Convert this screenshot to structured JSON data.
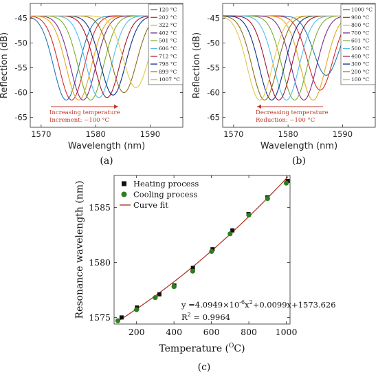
{
  "chart_data": [
    {
      "panel": "(a)",
      "type": "line",
      "xlabel": "Wavelength (nm)",
      "ylabel": "Reflection (dB)",
      "xlim": [
        1568,
        1596
      ],
      "ylim": [
        -67,
        -42
      ],
      "xticks": [
        1570,
        1580,
        1590
      ],
      "yticks": [
        -45,
        -50,
        -55,
        -60,
        -65
      ],
      "legend_position": "top-right",
      "series": [
        {
          "name": "120 °C",
          "center": 1574.6,
          "depth": -61.5,
          "color": "#1f77b4"
        },
        {
          "name": "202 °C",
          "center": 1575.6,
          "depth": -61.5,
          "color": "#d62728"
        },
        {
          "name": "322 °C",
          "center": 1576.9,
          "depth": -61.5,
          "color": "#e6a817"
        },
        {
          "name": "402 °C",
          "center": 1577.7,
          "depth": -61.5,
          "color": "#7b2d8e"
        },
        {
          "name": "501 °C",
          "center": 1579.1,
          "depth": -61.5,
          "color": "#77ac30"
        },
        {
          "name": "606 °C",
          "center": 1580.6,
          "depth": -61.0,
          "color": "#4dbeee"
        },
        {
          "name": "712 °C",
          "center": 1582.1,
          "depth": -61.0,
          "color": "#a2142f"
        },
        {
          "name": "798 °C",
          "center": 1583.2,
          "depth": -60.5,
          "color": "#0b2e8a"
        },
        {
          "name": "899 °C",
          "center": 1585.2,
          "depth": -60.0,
          "color": "#8c6d1f"
        },
        {
          "name": "1007 °C",
          "center": 1587.4,
          "depth": -59.0,
          "color": "#e8c547"
        }
      ],
      "annotation": {
        "line1": "Increasing temperature",
        "line2": "Increment: ~100 °C",
        "arrow": "right"
      }
    },
    {
      "panel": "(b)",
      "type": "line",
      "xlabel": "Wavelength (nm)",
      "ylabel": "Reflection (dB)",
      "xlim": [
        1568,
        1596
      ],
      "ylim": [
        -67,
        -42
      ],
      "xticks": [
        1570,
        1580,
        1590
      ],
      "yticks": [
        -45,
        -50,
        -55,
        -60,
        -65
      ],
      "legend_position": "top-right",
      "series": [
        {
          "name": "1000 °C",
          "center": 1587.0,
          "depth": -56.5,
          "color": "#1f77b4"
        },
        {
          "name": "900 °C",
          "center": 1585.9,
          "depth": -59.5,
          "color": "#d62728"
        },
        {
          "name": "800 °C",
          "center": 1584.6,
          "depth": -61.5,
          "color": "#e6a817"
        },
        {
          "name": "700 °C",
          "center": 1582.9,
          "depth": -61.5,
          "color": "#7b2d8e"
        },
        {
          "name": "601 °C",
          "center": 1581.2,
          "depth": -61.5,
          "color": "#77ac30"
        },
        {
          "name": "500 °C",
          "center": 1579.7,
          "depth": -61.5,
          "color": "#4dbeee"
        },
        {
          "name": "400 °C",
          "center": 1578.3,
          "depth": -61.5,
          "color": "#a2142f"
        },
        {
          "name": "300 °C",
          "center": 1577.0,
          "depth": -61.5,
          "color": "#0b2e8a"
        },
        {
          "name": "200 °C",
          "center": 1575.7,
          "depth": -61.5,
          "color": "#8c6d1f"
        },
        {
          "name": "100 °C",
          "center": 1574.8,
          "depth": -61.5,
          "color": "#e8c547"
        }
      ],
      "annotation": {
        "line1": "Decreasing temperature",
        "line2": "Reduction: ~100 °C",
        "arrow": "left"
      }
    },
    {
      "panel": "(c)",
      "type": "scatter",
      "xlabel": "Temperature (°C)",
      "xlabel_main": "Temperature (",
      "xlabel_unit": "O",
      "xlabel_tail": "C)",
      "ylabel": "Resonance wavelength (nm)",
      "xlim": [
        80,
        1020
      ],
      "ylim": [
        1574.4,
        1587.9
      ],
      "xticks": [
        200,
        400,
        600,
        800,
        1000
      ],
      "yticks": [
        1575,
        1580,
        1585
      ],
      "legend_position": "top-left",
      "series": [
        {
          "name": "Heating process",
          "marker": "square",
          "color": "#111111",
          "x": [
            120,
            202,
            322,
            402,
            501,
            606,
            712,
            798,
            899,
            1007
          ],
          "y": [
            1575.0,
            1575.9,
            1577.1,
            1577.9,
            1579.5,
            1581.2,
            1582.9,
            1584.4,
            1585.9,
            1587.4
          ]
        },
        {
          "name": "Cooling process",
          "marker": "circle",
          "color": "#2e7d1e",
          "x": [
            100,
            200,
            300,
            400,
            500,
            601,
            700,
            800,
            900,
            1000
          ],
          "y": [
            1574.7,
            1575.7,
            1576.8,
            1577.8,
            1579.2,
            1581.0,
            1582.6,
            1584.3,
            1585.8,
            1587.2
          ]
        },
        {
          "name": "Curve fit",
          "marker": "line",
          "color": "#b03a2e"
        }
      ],
      "fit": {
        "a": 4.0949e-06,
        "b": 0.0099,
        "c": 1573.626
      },
      "equation_parts": [
        "y =4.0949×10",
        "-6",
        "x",
        "2",
        "+0.0099x+1573.626"
      ],
      "r2_parts": [
        "R",
        "2",
        " = 0.9964"
      ]
    }
  ]
}
